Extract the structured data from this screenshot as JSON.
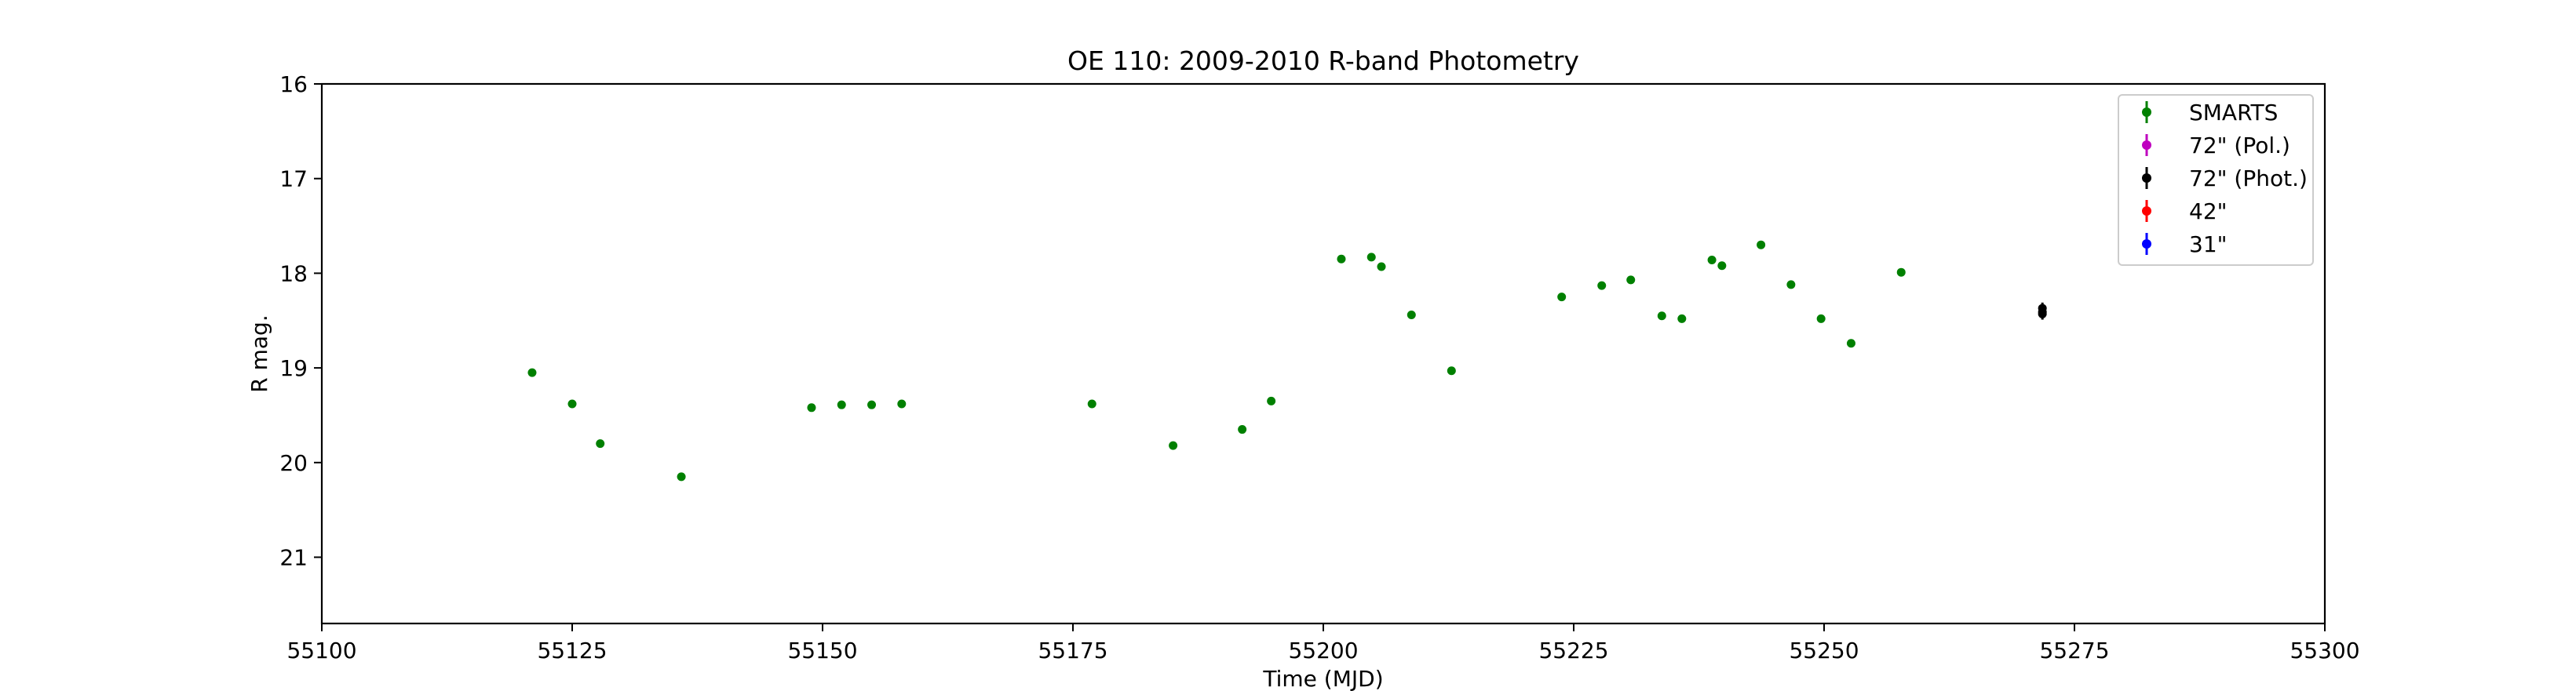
{
  "chart_data": {
    "type": "scatter",
    "title": "OE 110: 2009-2010 R-band Photometry",
    "xlabel": "Time (MJD)",
    "ylabel": "R mag.",
    "xlim": [
      55100,
      55300
    ],
    "ylim": [
      21.7,
      16
    ],
    "y_inverted": true,
    "xticks": [
      "55100",
      "55125",
      "55150",
      "55175",
      "55200",
      "55225",
      "55250",
      "55275",
      "55300"
    ],
    "yticks": [
      "16",
      "17",
      "18",
      "19",
      "20",
      "21"
    ],
    "grid": false,
    "legend_position": "top-right",
    "series": [
      {
        "name": "SMARTS",
        "color": "#008000",
        "points": [
          {
            "x": 55121.0,
            "y": 19.05
          },
          {
            "x": 55125.0,
            "y": 19.38
          },
          {
            "x": 55127.8,
            "y": 19.8
          },
          {
            "x": 55135.9,
            "y": 20.15
          },
          {
            "x": 55148.9,
            "y": 19.42
          },
          {
            "x": 55151.9,
            "y": 19.39
          },
          {
            "x": 55154.9,
            "y": 19.39
          },
          {
            "x": 55157.9,
            "y": 19.38
          },
          {
            "x": 55176.9,
            "y": 19.38
          },
          {
            "x": 55185.0,
            "y": 19.82
          },
          {
            "x": 55191.9,
            "y": 19.65
          },
          {
            "x": 55194.8,
            "y": 19.35
          },
          {
            "x": 55201.8,
            "y": 17.85
          },
          {
            "x": 55204.8,
            "y": 17.83
          },
          {
            "x": 55205.8,
            "y": 17.93
          },
          {
            "x": 55208.8,
            "y": 18.44
          },
          {
            "x": 55212.8,
            "y": 19.03
          },
          {
            "x": 55223.8,
            "y": 18.25
          },
          {
            "x": 55227.8,
            "y": 18.13
          },
          {
            "x": 55230.7,
            "y": 18.07
          },
          {
            "x": 55233.8,
            "y": 18.45
          },
          {
            "x": 55235.8,
            "y": 18.48
          },
          {
            "x": 55238.8,
            "y": 17.86
          },
          {
            "x": 55239.8,
            "y": 17.92
          },
          {
            "x": 55243.7,
            "y": 17.7
          },
          {
            "x": 55246.7,
            "y": 18.12
          },
          {
            "x": 55249.7,
            "y": 18.48
          },
          {
            "x": 55252.7,
            "y": 18.74
          },
          {
            "x": 55257.7,
            "y": 17.99
          }
        ]
      },
      {
        "name": "72\" (Pol.)",
        "color": "#bf00bf",
        "points": []
      },
      {
        "name": "72\" (Phot.)",
        "color": "#000000",
        "points": [
          {
            "x": 55271.8,
            "y": 18.37,
            "yerr": 0.06
          },
          {
            "x": 55271.8,
            "y": 18.41,
            "yerr": 0.06
          },
          {
            "x": 55271.8,
            "y": 18.43,
            "yerr": 0.06
          }
        ]
      },
      {
        "name": "42\"",
        "color": "#ff0000",
        "points": []
      },
      {
        "name": "31\"",
        "color": "#0000ff",
        "points": []
      }
    ]
  }
}
